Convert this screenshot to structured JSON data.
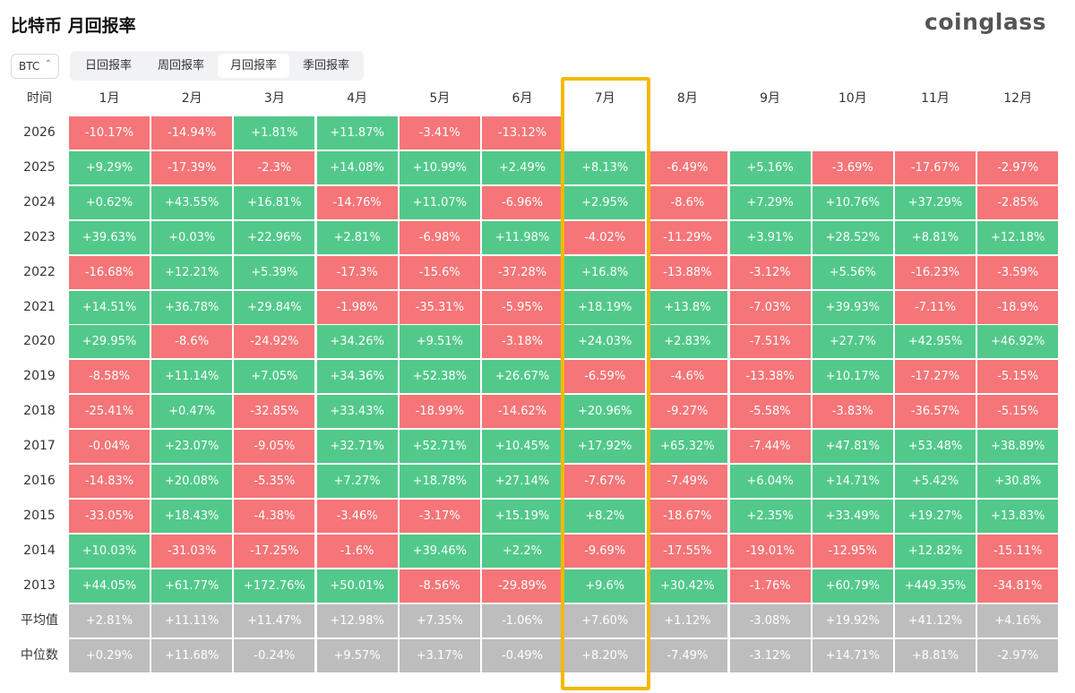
{
  "header": {
    "title": "比特币 月回报率",
    "logo": "coinglass"
  },
  "selector": "BTC",
  "tabs": [
    "日回报率",
    "周回报率",
    "月回报率",
    "季回报率"
  ],
  "active_tab": 2,
  "table": {
    "columns": [
      "时间",
      "1月",
      "2月",
      "3月",
      "4月",
      "5月",
      "6月",
      "7月",
      "8月",
      "9月",
      "10月",
      "11月",
      "12月"
    ],
    "rows": [
      [
        "2026",
        "-10.17%",
        "-14.94%",
        "+1.81%",
        "+11.87%",
        "-3.41%",
        "-13.12%"
      ],
      [
        "2025",
        "+9.29%",
        "-17.39%",
        "-2.3%",
        "+14.08%",
        "+10.99%",
        "+2.49%",
        "+8.13%",
        "-6.49%",
        "+5.16%",
        "-3.69%",
        "-17.67%",
        "-2.97%"
      ],
      [
        "2024",
        "+0.62%",
        "+43.55%",
        "+16.81%",
        "-14.76%",
        "+11.07%",
        "-6.96%",
        "+2.95%",
        "-8.6%",
        "+7.29%",
        "+10.76%",
        "+37.29%",
        "-2.85%"
      ],
      [
        "2023",
        "+39.63%",
        "+0.03%",
        "+22.96%",
        "+2.81%",
        "-6.98%",
        "+11.98%",
        "-4.02%",
        "-11.29%",
        "+3.91%",
        "+28.52%",
        "+8.81%",
        "+12.18%"
      ],
      [
        "2022",
        "-16.68%",
        "+12.21%",
        "+5.39%",
        "-17.3%",
        "-15.6%",
        "-37.28%",
        "+16.8%",
        "-13.88%",
        "-3.12%",
        "+5.56%",
        "-16.23%",
        "-3.59%"
      ],
      [
        "2021",
        "+14.51%",
        "+36.78%",
        "+29.84%",
        "-1.98%",
        "-35.31%",
        "-5.95%",
        "+18.19%",
        "+13.8%",
        "-7.03%",
        "+39.93%",
        "-7.11%",
        "-18.9%"
      ],
      [
        "2020",
        "+29.95%",
        "-8.6%",
        "-24.92%",
        "+34.26%",
        "+9.51%",
        "-3.18%",
        "+24.03%",
        "+2.83%",
        "-7.51%",
        "+27.7%",
        "+42.95%",
        "+46.92%"
      ],
      [
        "2019",
        "-8.58%",
        "+11.14%",
        "+7.05%",
        "+34.36%",
        "+52.38%",
        "+26.67%",
        "-6.59%",
        "-4.6%",
        "-13.38%",
        "+10.17%",
        "-17.27%",
        "-5.15%"
      ],
      [
        "2018",
        "-25.41%",
        "+0.47%",
        "-32.85%",
        "+33.43%",
        "-18.99%",
        "-14.62%",
        "+20.96%",
        "-9.27%",
        "-5.58%",
        "-3.83%",
        "-36.57%",
        "-5.15%"
      ],
      [
        "2017",
        "-0.04%",
        "+23.07%",
        "-9.05%",
        "+32.71%",
        "+52.71%",
        "+10.45%",
        "+17.92%",
        "+65.32%",
        "-7.44%",
        "+47.81%",
        "+53.48%",
        "+38.89%"
      ],
      [
        "2016",
        "-14.83%",
        "+20.08%",
        "-5.35%",
        "+7.27%",
        "+18.78%",
        "+27.14%",
        "-7.67%",
        "-7.49%",
        "+6.04%",
        "+14.71%",
        "+5.42%",
        "+30.8%"
      ],
      [
        "2015",
        "-33.05%",
        "+18.43%",
        "-4.38%",
        "-3.46%",
        "-3.17%",
        "+15.19%",
        "+8.2%",
        "-18.67%",
        "+2.35%",
        "+33.49%",
        "+19.27%",
        "+13.83%"
      ],
      [
        "2014",
        "+10.03%",
        "-31.03%",
        "-17.25%",
        "-1.6%",
        "+39.46%",
        "+2.2%",
        "-9.69%",
        "-17.55%",
        "-19.01%",
        "-12.95%",
        "+12.82%",
        "-15.11%"
      ],
      [
        "2013",
        "+44.05%",
        "+61.77%",
        "+172.76%",
        "+50.01%",
        "-8.56%",
        "-29.89%",
        "+9.6%",
        "+30.42%",
        "-1.76%",
        "+60.79%",
        "+449.35%",
        "-34.81%"
      ]
    ],
    "summary_rows": [
      [
        "平均值",
        "+2.81%",
        "+11.11%",
        "+11.47%",
        "+12.98%",
        "+7.35%",
        "-1.06%",
        "+7.60%",
        "+1.12%",
        "-3.08%",
        "+19.92%",
        "+41.12%",
        "+4.16%"
      ],
      [
        "中位数",
        "+0.29%",
        "+11.68%",
        "-0.24%",
        "+9.57%",
        "+3.17%",
        "-0.49%",
        "+8.20%",
        "-7.49%",
        "-3.12%",
        "+14.71%",
        "+8.81%",
        "-2.97%"
      ]
    ]
  }
}
